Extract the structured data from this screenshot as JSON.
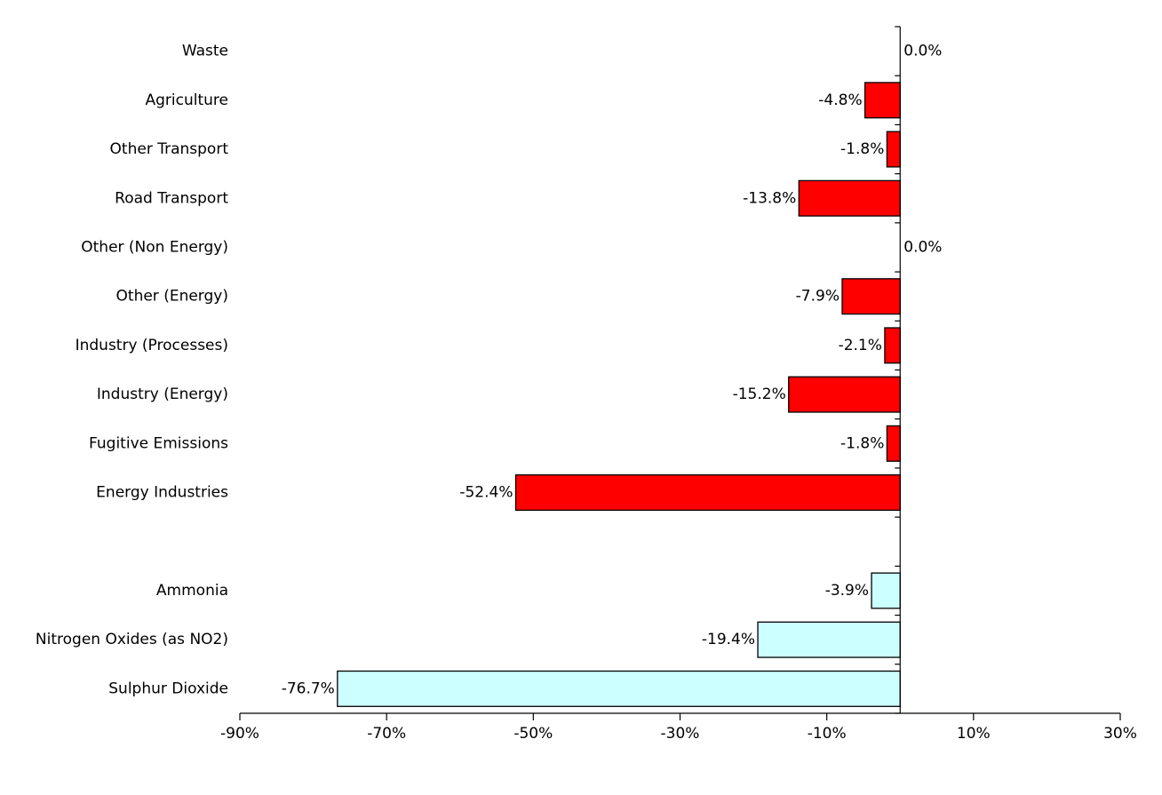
{
  "chart_data": {
    "type": "bar",
    "orientation": "horizontal",
    "xlim": [
      -90,
      30
    ],
    "x_ticks": [
      -90,
      -70,
      -50,
      -30,
      -10,
      10,
      30
    ],
    "x_tick_labels": [
      "-90%",
      "-70%",
      "-50%",
      "-30%",
      "-10%",
      "10%",
      "30%"
    ],
    "grid": false,
    "legend": "none",
    "colors": {
      "sector": "#ff0000",
      "pollutant": "#ccffff",
      "outline": "#000000"
    },
    "categories": [
      "Waste",
      "Agriculture",
      "Other Transport",
      "Road Transport",
      "Other (Non Energy)",
      "Other (Energy)",
      "Industry (Processes)",
      "Industry (Energy)",
      "Fugitive Emissions",
      "Energy Industries",
      "",
      "Ammonia",
      "Nitrogen Oxides (as NO2)",
      "Sulphur Dioxide"
    ],
    "values": [
      0.0,
      -4.8,
      -1.8,
      -13.8,
      0.0,
      -7.9,
      -2.1,
      -15.2,
      -1.8,
      -52.4,
      null,
      -3.9,
      -19.4,
      -76.7
    ],
    "value_labels": [
      "0.0%",
      "-4.8%",
      "-1.8%",
      "-13.8%",
      "0.0%",
      "-7.9%",
      "-2.1%",
      "-15.2%",
      "-1.8%",
      "-52.4%",
      "",
      "-3.9%",
      "-19.4%",
      "-76.7%"
    ],
    "groups": [
      "sector",
      "sector",
      "sector",
      "sector",
      "sector",
      "sector",
      "sector",
      "sector",
      "sector",
      "sector",
      "none",
      "pollutant",
      "pollutant",
      "pollutant"
    ]
  }
}
